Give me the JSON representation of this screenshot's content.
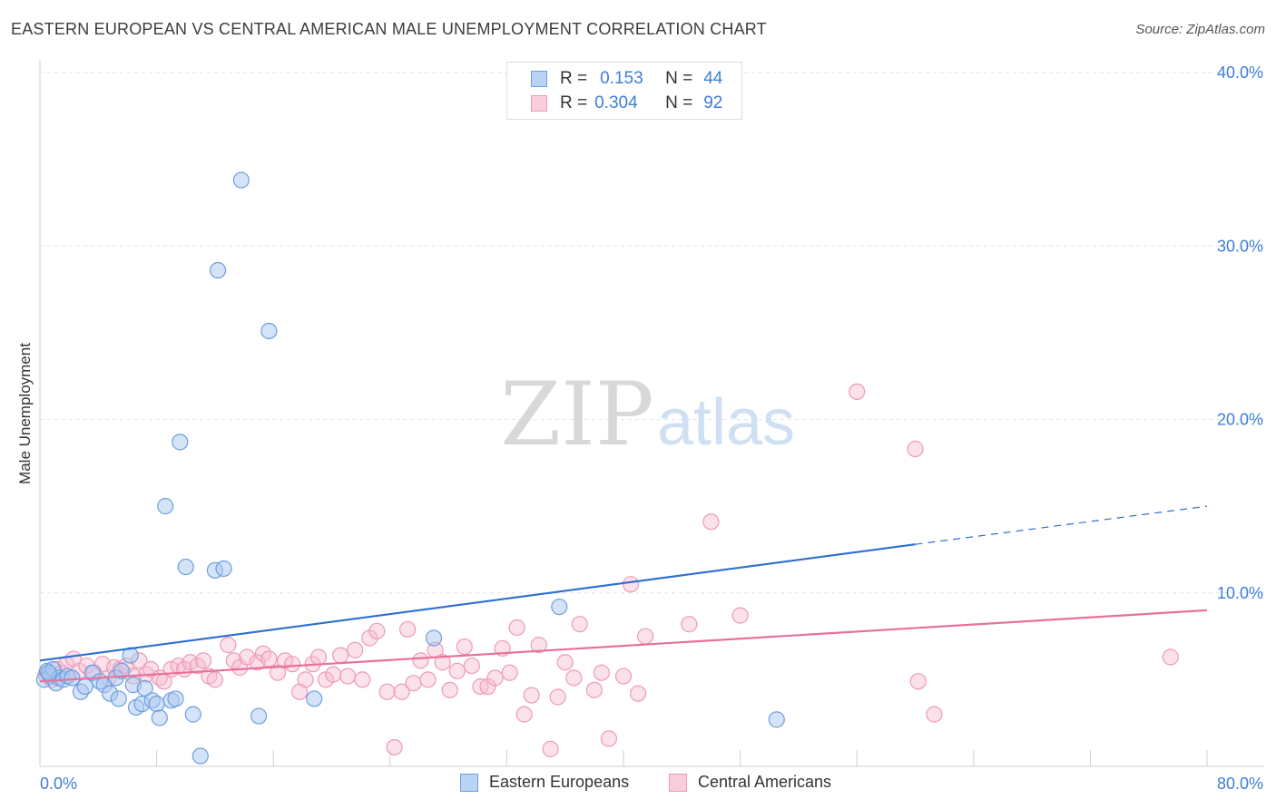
{
  "title": "EASTERN EUROPEAN VS CENTRAL AMERICAN MALE UNEMPLOYMENT CORRELATION CHART",
  "source": "Source: ZipAtlas.com",
  "watermark": {
    "zip": "ZIP",
    "atlas": "atlas"
  },
  "legend": {
    "r_label": "R =",
    "n_label": "N =",
    "rows": [
      {
        "r": "0.153",
        "n": "44"
      },
      {
        "r": "0.304",
        "n": "92"
      }
    ]
  },
  "colors": {
    "blue_fill": "#a9c8f0",
    "blue_stroke": "#6d9fe0",
    "blue_line": "#2c6fd1",
    "pink_fill": "#f7bcd0",
    "pink_stroke": "#ee9ab6",
    "pink_line": "#e8709a",
    "tick_text": "#3d7dd8"
  },
  "chart_data": {
    "type": "scatter",
    "title": "EASTERN EUROPEAN VS CENTRAL AMERICAN MALE UNEMPLOYMENT CORRELATION CHART",
    "xlabel": "",
    "ylabel": "Male Unemployment",
    "xlim": [
      0,
      80
    ],
    "ylim": [
      0,
      40
    ],
    "x_tick_labels": [
      "0.0%",
      "80.0%"
    ],
    "y_ticks": [
      10,
      20,
      30,
      40
    ],
    "y_tick_labels": [
      "10.0%",
      "20.0%",
      "30.0%",
      "40.0%"
    ],
    "grid": true,
    "legend_position": "top-center and bottom",
    "series": [
      {
        "name": "Eastern Europeans",
        "trend": {
          "x0": 0,
          "y0": 6.1,
          "x1": 60,
          "y1": 12.8,
          "dashed_to_x": 80,
          "dashed_to_y": 15.0
        },
        "points": [
          [
            0.3,
            5.0
          ],
          [
            0.5,
            5.5
          ],
          [
            0.7,
            5.2
          ],
          [
            0.9,
            5.6
          ],
          [
            1.1,
            4.8
          ],
          [
            1.3,
            5.1
          ],
          [
            1.6,
            5.0
          ],
          [
            1.9,
            5.2
          ],
          [
            2.2,
            5.1
          ],
          [
            2.8,
            4.3
          ],
          [
            3.1,
            4.6
          ],
          [
            3.6,
            5.4
          ],
          [
            4.1,
            4.9
          ],
          [
            4.4,
            4.7
          ],
          [
            4.8,
            4.2
          ],
          [
            5.2,
            5.1
          ],
          [
            5.4,
            3.9
          ],
          [
            5.6,
            5.5
          ],
          [
            6.2,
            6.4
          ],
          [
            6.4,
            4.7
          ],
          [
            6.6,
            3.4
          ],
          [
            7.0,
            3.6
          ],
          [
            7.2,
            4.5
          ],
          [
            7.7,
            3.8
          ],
          [
            8.0,
            3.6
          ],
          [
            8.2,
            2.8
          ],
          [
            8.6,
            15.0
          ],
          [
            9.0,
            3.8
          ],
          [
            9.3,
            3.9
          ],
          [
            9.6,
            18.7
          ],
          [
            10.0,
            11.5
          ],
          [
            10.5,
            3.0
          ],
          [
            11.0,
            0.6
          ],
          [
            12.0,
            11.3
          ],
          [
            12.2,
            28.6
          ],
          [
            12.6,
            11.4
          ],
          [
            13.8,
            33.8
          ],
          [
            15.0,
            2.9
          ],
          [
            15.7,
            25.1
          ],
          [
            18.8,
            3.9
          ],
          [
            27.0,
            7.4
          ],
          [
            35.6,
            9.2
          ],
          [
            50.5,
            2.7
          ],
          [
            0.6,
            5.4
          ]
        ]
      },
      {
        "name": "Central Americans",
        "trend": {
          "x0": 0,
          "y0": 4.9,
          "x1": 80,
          "y1": 9.0
        },
        "points": [
          [
            0.4,
            5.3
          ],
          [
            0.8,
            5.0
          ],
          [
            1.2,
            5.6
          ],
          [
            1.5,
            5.4
          ],
          [
            1.8,
            5.9
          ],
          [
            2.3,
            6.2
          ],
          [
            2.7,
            5.5
          ],
          [
            3.2,
            5.8
          ],
          [
            3.7,
            5.4
          ],
          [
            4.3,
            5.9
          ],
          [
            4.7,
            5.1
          ],
          [
            5.1,
            5.7
          ],
          [
            5.5,
            5.6
          ],
          [
            5.9,
            5.8
          ],
          [
            6.4,
            5.2
          ],
          [
            6.8,
            6.1
          ],
          [
            7.3,
            5.3
          ],
          [
            7.6,
            5.6
          ],
          [
            8.2,
            5.1
          ],
          [
            8.5,
            4.9
          ],
          [
            9.0,
            5.6
          ],
          [
            9.5,
            5.8
          ],
          [
            9.9,
            5.6
          ],
          [
            10.3,
            6.0
          ],
          [
            10.8,
            5.8
          ],
          [
            11.2,
            6.1
          ],
          [
            11.6,
            5.2
          ],
          [
            12.0,
            5.0
          ],
          [
            12.9,
            7.0
          ],
          [
            13.3,
            6.1
          ],
          [
            13.7,
            5.7
          ],
          [
            14.2,
            6.3
          ],
          [
            14.9,
            6.0
          ],
          [
            15.3,
            6.5
          ],
          [
            15.7,
            6.2
          ],
          [
            16.3,
            5.4
          ],
          [
            16.8,
            6.1
          ],
          [
            17.3,
            5.9
          ],
          [
            17.8,
            4.3
          ],
          [
            18.2,
            5.0
          ],
          [
            18.7,
            5.9
          ],
          [
            19.1,
            6.3
          ],
          [
            19.6,
            5.0
          ],
          [
            20.1,
            5.3
          ],
          [
            20.6,
            6.4
          ],
          [
            21.1,
            5.2
          ],
          [
            21.6,
            6.7
          ],
          [
            22.1,
            5.0
          ],
          [
            22.6,
            7.4
          ],
          [
            23.1,
            7.8
          ],
          [
            23.8,
            4.3
          ],
          [
            24.3,
            1.1
          ],
          [
            24.8,
            4.3
          ],
          [
            25.2,
            7.9
          ],
          [
            25.6,
            4.8
          ],
          [
            26.1,
            6.1
          ],
          [
            26.6,
            5.0
          ],
          [
            27.1,
            6.7
          ],
          [
            27.6,
            6.0
          ],
          [
            28.1,
            4.4
          ],
          [
            28.6,
            5.5
          ],
          [
            29.1,
            6.9
          ],
          [
            29.6,
            5.8
          ],
          [
            30.2,
            4.6
          ],
          [
            30.7,
            4.6
          ],
          [
            31.2,
            5.1
          ],
          [
            31.7,
            6.8
          ],
          [
            32.2,
            5.4
          ],
          [
            32.7,
            8.0
          ],
          [
            33.2,
            3.0
          ],
          [
            33.7,
            4.1
          ],
          [
            34.2,
            7.0
          ],
          [
            35.0,
            1.0
          ],
          [
            35.5,
            4.0
          ],
          [
            36.0,
            6.0
          ],
          [
            36.6,
            5.1
          ],
          [
            37.0,
            8.2
          ],
          [
            38.0,
            4.4
          ],
          [
            38.5,
            5.4
          ],
          [
            39.0,
            1.6
          ],
          [
            40.0,
            5.2
          ],
          [
            40.5,
            10.5
          ],
          [
            41.0,
            4.2
          ],
          [
            41.5,
            7.5
          ],
          [
            44.5,
            8.2
          ],
          [
            46.0,
            14.1
          ],
          [
            48.0,
            8.7
          ],
          [
            56.0,
            21.6
          ],
          [
            60.0,
            18.3
          ],
          [
            60.2,
            4.9
          ],
          [
            61.3,
            3.0
          ],
          [
            77.5,
            6.3
          ]
        ]
      }
    ]
  },
  "bottom_legend": [
    "Eastern Europeans",
    "Central Americans"
  ]
}
